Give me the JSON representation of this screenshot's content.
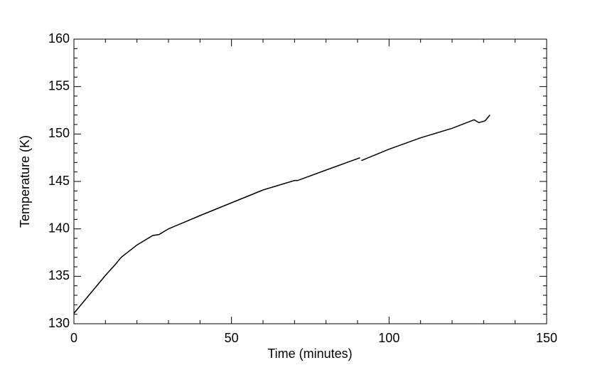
{
  "chart_data": {
    "type": "line",
    "xlabel": "Time (minutes)",
    "ylabel": "Temperature (K)",
    "xlim": [
      0,
      150
    ],
    "ylim": [
      130,
      160
    ],
    "xticks": [
      0,
      50,
      100,
      150
    ],
    "yticks": [
      130,
      135,
      140,
      145,
      150,
      155,
      160
    ],
    "minor_divisions": 5,
    "x": [
      0,
      5,
      10,
      13,
      15,
      20,
      25,
      27,
      30,
      40,
      50,
      60,
      70,
      71,
      80,
      90.8,
      91,
      91.2,
      100,
      110,
      120,
      127,
      128.5,
      130.5,
      132
    ],
    "series": [
      {
        "color": "#000000",
        "values": [
          131.1,
          133.1,
          135.1,
          136.2,
          137.0,
          138.3,
          139.3,
          139.4,
          140.0,
          141.4,
          142.75,
          144.1,
          145.1,
          145.1,
          146.2,
          147.5,
          null,
          147.2,
          148.4,
          149.6,
          150.6,
          151.5,
          151.2,
          151.4,
          152.0
        ]
      }
    ]
  }
}
